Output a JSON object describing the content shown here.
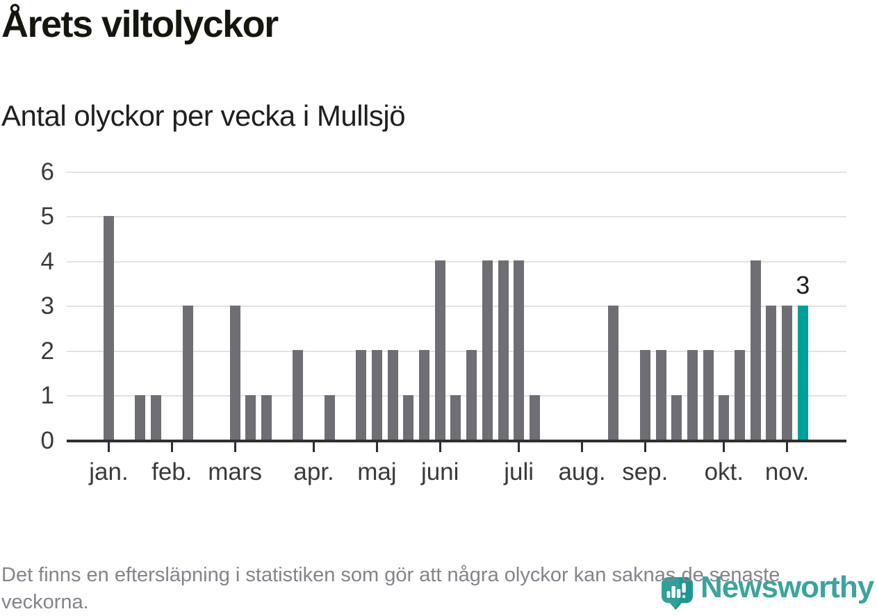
{
  "header": {
    "title": "Årets viltolyckor",
    "subtitle": "Antal olyckor per vecka i Mullsjö"
  },
  "chart_data": {
    "type": "bar",
    "title": "Årets viltolyckor",
    "subtitle": "Antal olyckor per vecka i Mullsjö",
    "x_unit": "vecka",
    "values": [
      5,
      0,
      1,
      1,
      0,
      3,
      0,
      0,
      3,
      1,
      1,
      0,
      2,
      0,
      1,
      0,
      2,
      2,
      2,
      1,
      2,
      4,
      1,
      2,
      4,
      4,
      4,
      1,
      0,
      0,
      0,
      0,
      3,
      0,
      2,
      2,
      1,
      2,
      2,
      1,
      2,
      4,
      3,
      3,
      3
    ],
    "month_ticks": [
      {
        "label": "jan.",
        "week": 0
      },
      {
        "label": "feb.",
        "week": 4
      },
      {
        "label": "mars",
        "week": 8
      },
      {
        "label": "apr.",
        "week": 13
      },
      {
        "label": "maj",
        "week": 17
      },
      {
        "label": "juni",
        "week": 21
      },
      {
        "label": "juli",
        "week": 26
      },
      {
        "label": "aug.",
        "week": 30
      },
      {
        "label": "sep.",
        "week": 34
      },
      {
        "label": "okt.",
        "week": 39
      },
      {
        "label": "nov.",
        "week": 43
      }
    ],
    "yticks": [
      0,
      1,
      2,
      3,
      4,
      5,
      6
    ],
    "ylim": [
      0,
      6
    ],
    "grid": true,
    "annotation": {
      "text": "3",
      "week": 44
    },
    "highlight": {
      "week": 44,
      "color": "#00a09a"
    },
    "bar_color": "#6e6e74",
    "grid_color": "#e2e2e2",
    "axis_color": "#2e2e33",
    "label_color": "#3a3a3a"
  },
  "footer": {
    "note": "Det finns en eftersläpning i statistiken som gör att några olyckor kan saknas de senaste veckorna.",
    "brand": "Newsworthy"
  }
}
